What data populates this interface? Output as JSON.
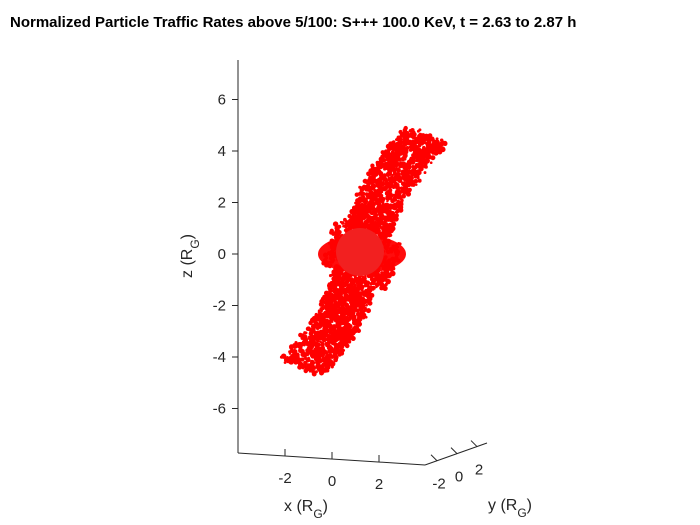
{
  "title": "Normalized Particle Traffic Rates above 5/100: S+++ 100.0 KeV, t = 2.63 to 2.87 h",
  "chart_data": {
    "type": "scatter",
    "title": "Normalized Particle Traffic Rates above 5/100: S+++ 100.0 KeV, t = 2.63 to 2.87 h",
    "zlabel": {
      "main": "z (R",
      "sub": "G",
      "end": ")"
    },
    "xlabel": {
      "main": "x (R",
      "sub": "G",
      "end": ")"
    },
    "ylabel": {
      "main": "y (R",
      "sub": "G",
      "end": ")"
    },
    "z_ticks": [
      "6",
      "4",
      "2",
      "0",
      "-2",
      "-4",
      "-6"
    ],
    "z_tick_values": [
      6,
      4,
      2,
      0,
      -2,
      -4,
      -6
    ],
    "x_ticks": [
      "-2",
      "0",
      "2"
    ],
    "x_tick_values": [
      -2,
      0,
      2
    ],
    "y_ticks": [
      "-2",
      "0",
      "2"
    ],
    "y_tick_values": [
      -2,
      0,
      2
    ],
    "zlim": [
      -7.6,
      7.4
    ],
    "point_color": "#ff0000",
    "view": "3-D, nearly edge-on",
    "band": {
      "description": "two curved lobes along the z axis joined at a central disk",
      "z_extent": [
        -4.4,
        4.6
      ]
    }
  }
}
